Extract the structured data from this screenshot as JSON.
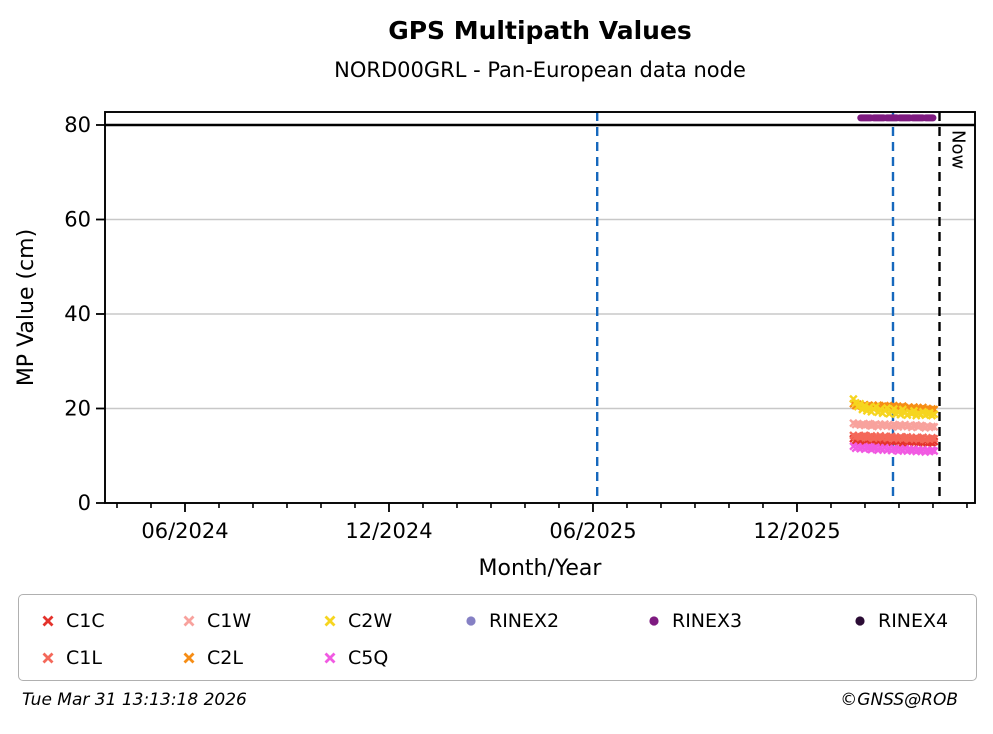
{
  "title": "GPS Multipath Values",
  "subtitle": "NORD00GRL - Pan-European data node",
  "footer": {
    "timestamp": "Tue Mar 31 13:13:18 2026",
    "credit": "©GNSS@ROB"
  },
  "chart_data": {
    "type": "scatter",
    "title": "GPS Multipath Values",
    "subtitle": "NORD00GRL - Pan-European data node",
    "xlabel": "Month/Year",
    "ylabel": "MP Value (cm)",
    "xlim": [
      2024.2206,
      2026.353
    ],
    "ylim": [
      0,
      82.75
    ],
    "grid": "horizontal-only",
    "gridline_color": "#c8c8c8",
    "x_major_ticks": [
      {
        "x": 2024.41667,
        "label": "06/2024"
      },
      {
        "x": 2024.91667,
        "label": "12/2024"
      },
      {
        "x": 2025.41667,
        "label": "06/2025"
      },
      {
        "x": 2025.91667,
        "label": "12/2025"
      }
    ],
    "x_minor": {
      "start": 2024.25,
      "end": 2026.335,
      "step": 0.0833333
    },
    "y_ticks": [
      0,
      20,
      40,
      60,
      80
    ],
    "gridlines_y": [
      20,
      40,
      60
    ],
    "hline": {
      "y": 80,
      "color": "#000000"
    },
    "event_lines": [
      {
        "x": 2025.427,
        "color": "#1668bd",
        "style": "dashed",
        "label": ""
      },
      {
        "x": 2026.152,
        "color": "#1668bd",
        "style": "dashed",
        "label": ""
      },
      {
        "x": 2026.266,
        "color": "#000000",
        "style": "dashed",
        "label": "Now"
      }
    ],
    "x": [
      2026.055,
      2026.0605,
      2026.066,
      2026.0715,
      2026.077,
      2026.0825,
      2026.088,
      2026.0935,
      2026.099,
      2026.1045,
      2026.11,
      2026.1155,
      2026.121,
      2026.1265,
      2026.132,
      2026.1375,
      2026.143,
      2026.1485,
      2026.154,
      2026.1595,
      2026.165,
      2026.1705,
      2026.176,
      2026.1815,
      2026.187,
      2026.1925,
      2026.198,
      2026.2035,
      2026.209,
      2026.2145,
      2026.22,
      2026.2255,
      2026.231,
      2026.2365,
      2026.242,
      2026.2475,
      2026.253
    ],
    "series": [
      {
        "name": "C1C",
        "color": "#e4332c",
        "marker": "x",
        "values": [
          13.6,
          13.2,
          13.5,
          13.1,
          13.4,
          13.0,
          13.3,
          13.5,
          12.9,
          13.2,
          13.4,
          12.9,
          13.3,
          13.0,
          13.4,
          12.8,
          13.1,
          13.3,
          12.8,
          13.2,
          12.9,
          13.3,
          12.7,
          13.0,
          13.2,
          12.7,
          13.1,
          12.8,
          13.2,
          12.6,
          13.0,
          12.7,
          13.1,
          12.6,
          12.9,
          12.7,
          13.0
        ]
      },
      {
        "name": "C1L",
        "color": "#f4685a",
        "marker": "x",
        "values": [
          14.3,
          14.0,
          14.2,
          13.9,
          14.1,
          14.3,
          13.8,
          14.0,
          14.2,
          13.7,
          14.0,
          13.9,
          14.2,
          13.8,
          14.1,
          13.7,
          13.9,
          14.1,
          13.6,
          13.9,
          13.7,
          14.0,
          13.6,
          13.8,
          14.0,
          13.5,
          13.8,
          13.6,
          13.9,
          13.5,
          13.7,
          13.9,
          13.4,
          13.7,
          13.5,
          13.8,
          13.6
        ]
      },
      {
        "name": "C1W",
        "color": "#f8a29d",
        "marker": "x",
        "values": [
          16.9,
          16.6,
          16.8,
          16.5,
          16.7,
          16.4,
          16.6,
          16.8,
          16.3,
          16.5,
          16.7,
          16.2,
          16.6,
          16.4,
          16.7,
          16.3,
          16.5,
          16.2,
          16.6,
          16.4,
          16.1,
          16.5,
          16.3,
          16.6,
          16.2,
          16.4,
          16.0,
          16.3,
          16.5,
          16.1,
          16.4,
          16.2,
          15.9,
          16.3,
          16.0,
          16.2,
          16.1
        ]
      },
      {
        "name": "C2L",
        "color": "#f68d15",
        "marker": "x",
        "values": [
          21.0,
          20.6,
          20.9,
          20.7,
          20.4,
          20.8,
          20.5,
          20.7,
          20.3,
          20.6,
          20.4,
          20.7,
          20.2,
          20.5,
          20.6,
          20.3,
          20.1,
          20.4,
          20.6,
          20.2,
          20.0,
          20.3,
          20.5,
          20.1,
          19.9,
          20.2,
          20.0,
          20.3,
          19.8,
          20.1,
          19.9,
          20.2,
          19.8,
          20.0,
          19.7,
          19.9,
          19.8
        ]
      },
      {
        "name": "C2W",
        "color": "#f6d51f",
        "marker": "x",
        "values": [
          22.0,
          21.2,
          20.4,
          21.0,
          19.8,
          20.6,
          19.5,
          20.2,
          19.3,
          19.9,
          20.4,
          19.2,
          19.8,
          19.0,
          19.6,
          20.1,
          18.9,
          19.4,
          19.9,
          18.8,
          19.3,
          18.7,
          19.8,
          19.1,
          18.6,
          19.2,
          18.9,
          19.5,
          18.5,
          19.0,
          18.7,
          19.3,
          18.6,
          18.9,
          19.1,
          18.5,
          18.8
        ]
      },
      {
        "name": "C5Q",
        "color": "#f15ae2",
        "marker": "x",
        "values": [
          12.0,
          11.6,
          11.9,
          11.5,
          11.8,
          11.4,
          11.7,
          11.9,
          11.3,
          11.6,
          11.8,
          11.2,
          11.6,
          11.3,
          11.7,
          11.2,
          11.5,
          11.1,
          11.5,
          11.3,
          11.0,
          11.4,
          11.1,
          11.5,
          11.0,
          11.3,
          11.1,
          11.4,
          10.9,
          11.2,
          11.0,
          11.3,
          10.8,
          11.1,
          10.9,
          11.2,
          11.0
        ]
      },
      {
        "name": "RINEX2",
        "color": "#8580c4",
        "marker": "dot",
        "values": []
      },
      {
        "name": "RINEX3",
        "color": "#7e1a80",
        "marker": "dot",
        "values": [],
        "segment": {
          "y": 81.5,
          "x_start": 2026.073,
          "x_end": 2026.25
        }
      },
      {
        "name": "RINEX4",
        "color": "#2b0c35",
        "marker": "dot",
        "values": []
      }
    ],
    "legend": {
      "position": "bottom",
      "order": [
        "C1C",
        "C1W",
        "C2W",
        "RINEX2",
        "RINEX3",
        "RINEX4",
        "C1L",
        "C2L",
        "C5Q"
      ]
    }
  }
}
